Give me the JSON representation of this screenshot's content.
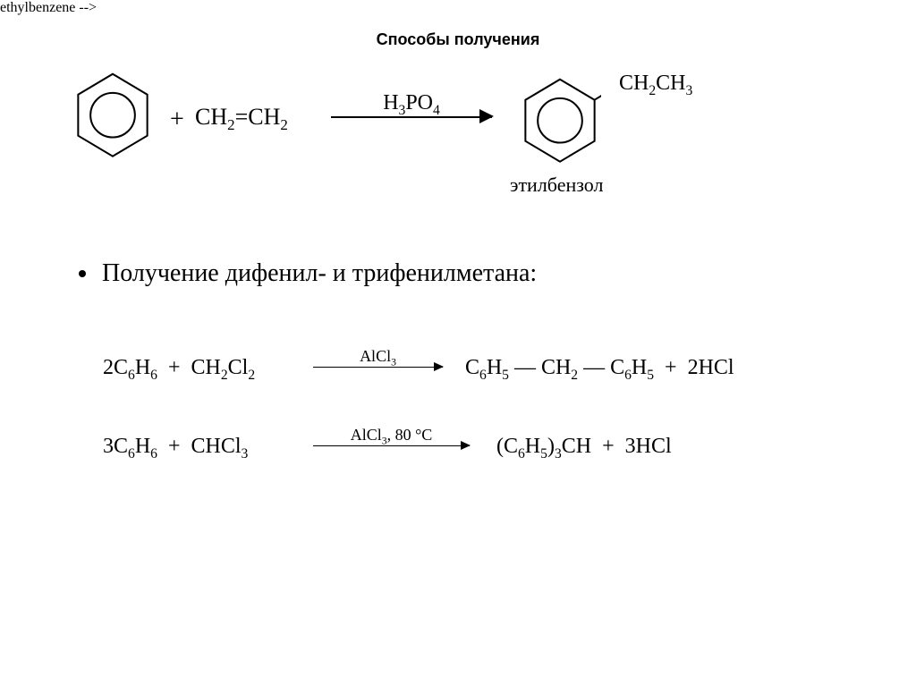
{
  "title": "Способы получения",
  "rxn1": {
    "reagent": "CH<sub>2</sub>=CH<sub>2</sub>",
    "catalyst": "H<sub>3</sub>PO<sub>4</sub>",
    "product_substituent": "CH<sub>2</sub>CH<sub>3</sub>",
    "product_label": "этилбензол",
    "plus": "+"
  },
  "section_bullet": "Получение дифенил- и трифенилметана:",
  "eq1": {
    "lhs": "2C<sub>6</sub>H<sub>6</sub>&nbsp;&nbsp;+&nbsp;&nbsp;CH<sub>2</sub>Cl<sub>2</sub>",
    "catalyst": "AlCl<sub>3</sub>",
    "rhs": "C<sub>6</sub>H<sub>5</sub>&nbsp;—&nbsp;CH<sub>2</sub>&nbsp;—&nbsp;C<sub>6</sub>H<sub>5</sub>&nbsp;&nbsp;+&nbsp;&nbsp;2HCl"
  },
  "eq2": {
    "lhs": "3C<sub>6</sub>H<sub>6</sub>&nbsp;&nbsp;+&nbsp;&nbsp;CHCl<sub>3</sub>",
    "catalyst": "AlCl<sub>3</sub>, 80 °C",
    "rhs": "(C<sub>6</sub>H<sub>5</sub>)<sub>3</sub>CH&nbsp;&nbsp;+&nbsp;&nbsp;3HCl"
  },
  "colors": {
    "text": "#000000",
    "background": "#ffffff"
  }
}
